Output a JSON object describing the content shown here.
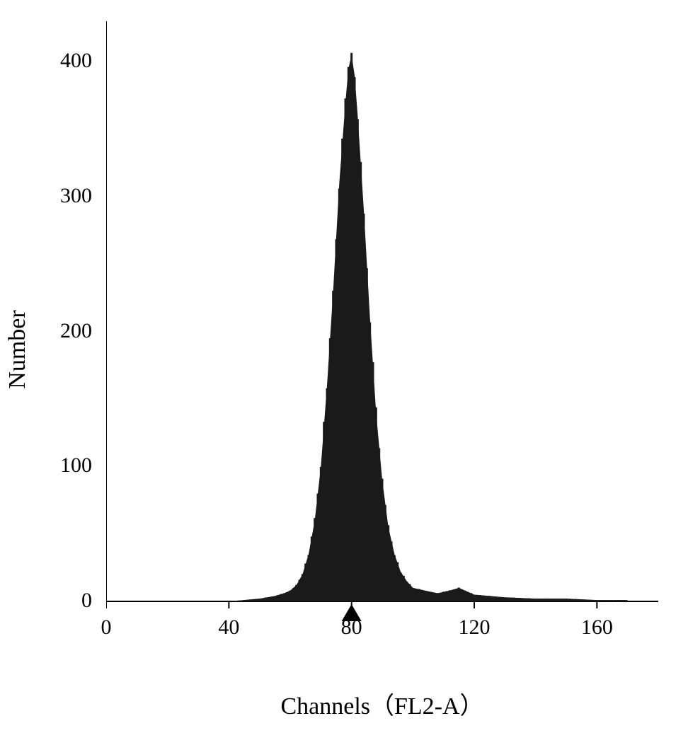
{
  "chart": {
    "type": "histogram",
    "xlabel": "Channels（FL2-A）",
    "ylabel": "Number",
    "xlim": [
      0,
      180
    ],
    "ylim": [
      0,
      430
    ],
    "xticks": [
      0,
      40,
      80,
      120,
      160
    ],
    "yticks": [
      0,
      100,
      200,
      300,
      400
    ],
    "label_fontsize_x": 34,
    "label_fontsize_y": 34,
    "tick_fontsize": 30,
    "background_color": "#ffffff",
    "axis_color": "#000000",
    "axis_width": 2,
    "bar_color": "#1a1a1a",
    "marker_position": 80,
    "data_points": [
      {
        "x": 40,
        "y": 0
      },
      {
        "x": 50,
        "y": 2
      },
      {
        "x": 55,
        "y": 4
      },
      {
        "x": 58,
        "y": 6
      },
      {
        "x": 60,
        "y": 8
      },
      {
        "x": 62,
        "y": 12
      },
      {
        "x": 64,
        "y": 20
      },
      {
        "x": 66,
        "y": 35
      },
      {
        "x": 68,
        "y": 60
      },
      {
        "x": 70,
        "y": 100
      },
      {
        "x": 72,
        "y": 160
      },
      {
        "x": 74,
        "y": 230
      },
      {
        "x": 76,
        "y": 310
      },
      {
        "x": 78,
        "y": 370
      },
      {
        "x": 79,
        "y": 395
      },
      {
        "x": 80,
        "y": 405
      },
      {
        "x": 81,
        "y": 390
      },
      {
        "x": 82,
        "y": 360
      },
      {
        "x": 84,
        "y": 290
      },
      {
        "x": 86,
        "y": 210
      },
      {
        "x": 88,
        "y": 140
      },
      {
        "x": 90,
        "y": 90
      },
      {
        "x": 92,
        "y": 55
      },
      {
        "x": 94,
        "y": 35
      },
      {
        "x": 96,
        "y": 22
      },
      {
        "x": 98,
        "y": 15
      },
      {
        "x": 100,
        "y": 10
      },
      {
        "x": 104,
        "y": 8
      },
      {
        "x": 108,
        "y": 6
      },
      {
        "x": 112,
        "y": 8
      },
      {
        "x": 115,
        "y": 10
      },
      {
        "x": 117,
        "y": 8
      },
      {
        "x": 120,
        "y": 5
      },
      {
        "x": 130,
        "y": 3
      },
      {
        "x": 140,
        "y": 2
      },
      {
        "x": 150,
        "y": 2
      },
      {
        "x": 160,
        "y": 1
      },
      {
        "x": 170,
        "y": 1
      }
    ]
  }
}
